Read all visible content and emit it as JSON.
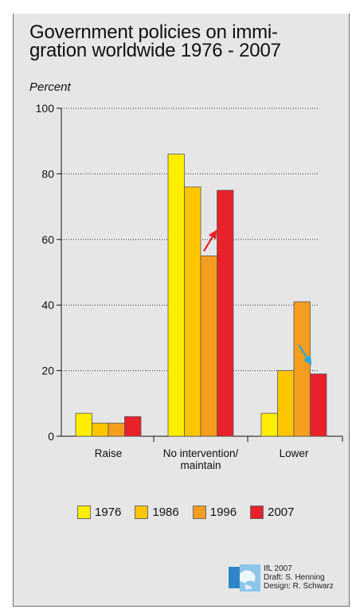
{
  "title": "Government policies on immigration worldwide 1976 - 2007",
  "title_lines": [
    "Government policies on immi-",
    "gration worldwide 1976 - 2007"
  ],
  "chart_data": {
    "type": "bar",
    "ylabel": "Percent",
    "ylim": [
      0,
      100
    ],
    "yticks": [
      0,
      20,
      40,
      60,
      80,
      100
    ],
    "categories": [
      "Raise",
      "No intervention/ maintain",
      "Lower"
    ],
    "category_lines": [
      [
        "Raise"
      ],
      [
        "No intervention/",
        "maintain"
      ],
      [
        "Lower"
      ]
    ],
    "series": [
      {
        "name": "1976",
        "color": "#ffee00",
        "values": [
          7,
          86,
          7
        ]
      },
      {
        "name": "1986",
        "color": "#ffc600",
        "values": [
          4,
          76,
          20
        ]
      },
      {
        "name": "1996",
        "color": "#f59d1f",
        "values": [
          4,
          55,
          41
        ]
      },
      {
        "name": "2007",
        "color": "#e8212a",
        "values": [
          6,
          75,
          19
        ]
      }
    ],
    "arrows": [
      {
        "category": "No intervention/ maintain",
        "direction": "up",
        "color": "#e8212a"
      },
      {
        "category": "Lower",
        "direction": "down",
        "color": "#23a9e1"
      }
    ],
    "grid": "dotted horizontal",
    "legend": "bottom"
  },
  "credits": [
    "IfL 2007",
    "Draft: S. Henning",
    "Design: R. Schwarz"
  ]
}
